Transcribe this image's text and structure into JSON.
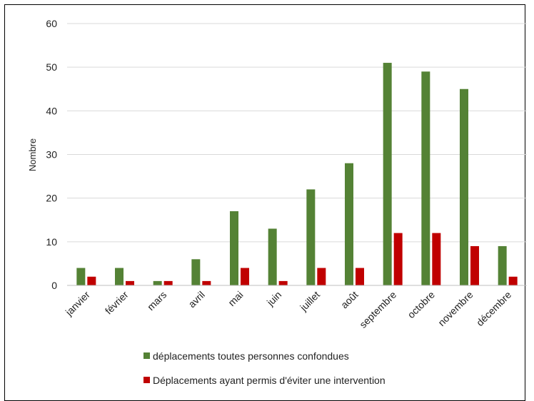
{
  "chart_data": {
    "type": "bar",
    "title": "",
    "xlabel": "",
    "ylabel": "Nombre",
    "ylim": [
      0,
      60
    ],
    "yticks": [
      0,
      10,
      20,
      30,
      40,
      50,
      60
    ],
    "grid": true,
    "legend_position": "bottom",
    "categories": [
      "janvier",
      "février",
      "mars",
      "avril",
      "mai",
      "juin",
      "juillet",
      "août",
      "septembre",
      "octobre",
      "novembre",
      "décembre"
    ],
    "series": [
      {
        "name": "déplacements toutes personnes confondues",
        "color": "#548235",
        "values": [
          4,
          4,
          1,
          6,
          17,
          13,
          22,
          28,
          51,
          49,
          45,
          9
        ]
      },
      {
        "name": "Déplacements ayant permis d'éviter une intervention",
        "color": "#c00000",
        "values": [
          2,
          1,
          1,
          1,
          4,
          1,
          4,
          4,
          12,
          12,
          9,
          2
        ]
      }
    ]
  }
}
